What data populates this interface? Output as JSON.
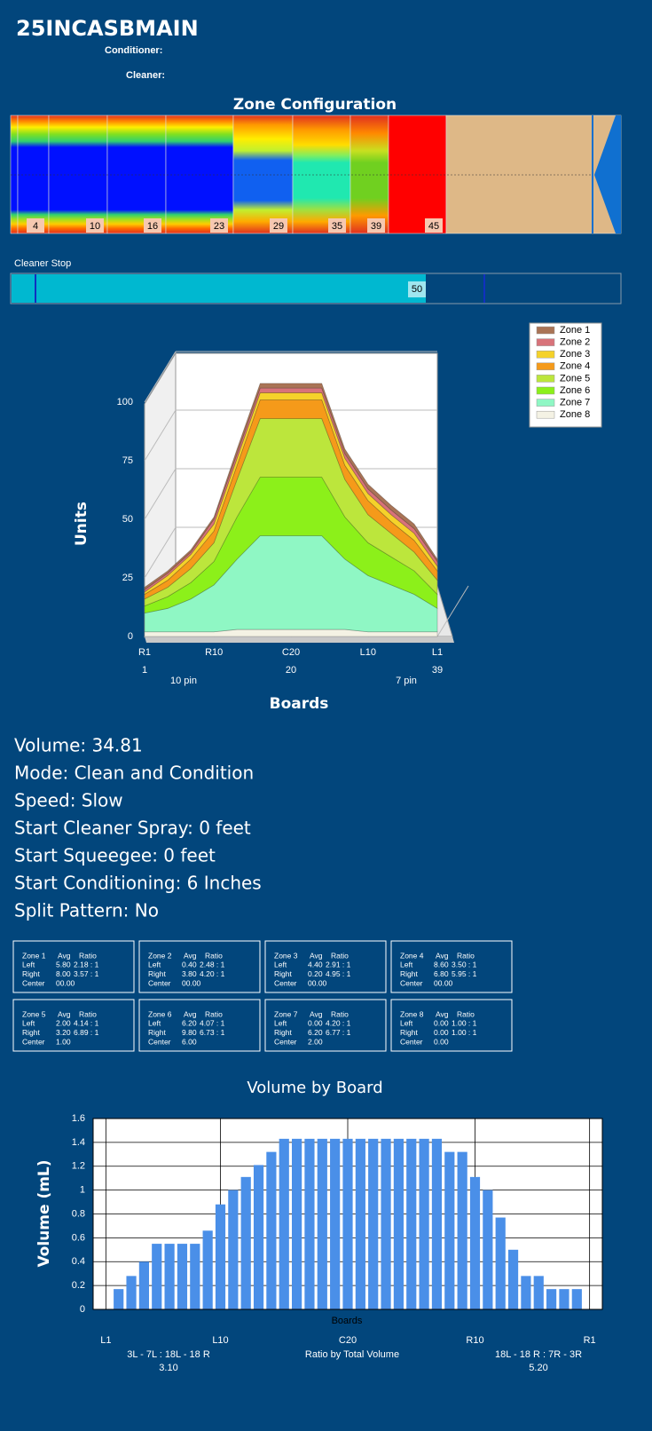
{
  "header": {
    "title": "25INCASBMAIN",
    "conditioner": "Conditioner:",
    "cleaner": "Cleaner:"
  },
  "zone_configuration": {
    "title": "Zone Configuration",
    "labels": [
      4,
      10,
      16,
      23,
      29,
      35,
      39,
      45
    ]
  },
  "cleaner_stop": {
    "label": "Cleaner Stop",
    "value": 50
  },
  "chart_data": [
    {
      "type": "area3d",
      "y_label": "Units",
      "x_label": "Boards",
      "x": [
        1,
        4,
        7,
        10,
        13,
        16,
        20,
        24,
        27,
        30,
        33,
        36,
        39
      ],
      "xlim": [
        1,
        39
      ],
      "xticks": [
        {
          "value": 1,
          "label": "R1"
        },
        {
          "value": 10,
          "label": "R10"
        },
        {
          "value": 20,
          "label": "C20"
        },
        {
          "value": 30,
          "label": "L10"
        },
        {
          "value": 39,
          "label": "L1"
        }
      ],
      "board_ticks": [
        1,
        20,
        39
      ],
      "annotations": [
        "10 pin",
        "7 pin"
      ],
      "ylim": [
        0,
        100
      ],
      "yticks": [
        0,
        25,
        50,
        75,
        100
      ],
      "series": [
        {
          "name": "Zone 1",
          "color": "#a97456",
          "values": [
            1,
            1,
            1,
            1,
            2,
            2,
            2,
            2,
            2,
            2,
            2,
            2,
            1
          ]
        },
        {
          "name": "Zone 2",
          "color": "#d8737a",
          "values": [
            1,
            1,
            1,
            2,
            2,
            2,
            2,
            2,
            2,
            2,
            2,
            2,
            2
          ]
        },
        {
          "name": "Zone 3",
          "color": "#f5d22a",
          "values": [
            1,
            2,
            2,
            3,
            3,
            3,
            3,
            3,
            3,
            3,
            3,
            3,
            2
          ]
        },
        {
          "name": "Zone 4",
          "color": "#f59a1a",
          "values": [
            2,
            3,
            4,
            5,
            6,
            8,
            8,
            8,
            6,
            6,
            5,
            5,
            4
          ]
        },
        {
          "name": "Zone 5",
          "color": "#bce63c",
          "values": [
            3,
            4,
            6,
            8,
            16,
            25,
            25,
            25,
            16,
            12,
            10,
            8,
            6
          ]
        },
        {
          "name": "Zone 6",
          "color": "#8cf01a",
          "values": [
            3,
            5,
            7,
            10,
            18,
            25,
            25,
            25,
            18,
            14,
            12,
            10,
            6
          ]
        },
        {
          "name": "Zone 7",
          "color": "#8ff7c4",
          "values": [
            8,
            10,
            14,
            20,
            30,
            40,
            40,
            40,
            30,
            24,
            20,
            16,
            10
          ]
        },
        {
          "name": "Zone 8",
          "color": "#f4f2e4",
          "values": [
            2,
            2,
            2,
            2,
            3,
            3,
            3,
            3,
            3,
            2,
            2,
            2,
            2
          ]
        }
      ]
    },
    {
      "type": "bar",
      "title": "Volume by Board",
      "y_label": "Volume (mL)",
      "x_label": "Boards",
      "color": "#4a8fe8",
      "x": [
        1,
        2,
        3,
        4,
        5,
        6,
        7,
        8,
        9,
        10,
        11,
        12,
        13,
        14,
        15,
        16,
        17,
        18,
        19,
        20,
        21,
        22,
        23,
        24,
        25,
        26,
        27,
        28,
        29,
        30,
        31,
        32,
        33,
        34,
        35,
        36,
        37,
        38,
        39
      ],
      "values": [
        0,
        0.17,
        0.28,
        0.4,
        0.55,
        0.55,
        0.55,
        0.55,
        0.66,
        0.88,
        1,
        1.11,
        1.21,
        1.32,
        1.43,
        1.43,
        1.43,
        1.43,
        1.43,
        1.43,
        1.43,
        1.43,
        1.43,
        1.43,
        1.43,
        1.43,
        1.43,
        1.32,
        1.32,
        1.11,
        1,
        0.77,
        0.5,
        0.28,
        0.28,
        0.17,
        0.17,
        0.17,
        0
      ],
      "xlim": [
        0,
        40
      ],
      "xticks": [
        {
          "value": 1,
          "label": "L1"
        },
        {
          "value": 10,
          "label": "L10"
        },
        {
          "value": 20,
          "label": "C20"
        },
        {
          "value": 30,
          "label": "R10"
        },
        {
          "value": 39,
          "label": "R1"
        }
      ],
      "ylim": [
        0,
        1.6
      ],
      "yticks": [
        0,
        0.2,
        0.4,
        0.6,
        0.8,
        1,
        1.2,
        1.4,
        1.6
      ],
      "footer": {
        "left": "3L - 7L : 18L - 18 R",
        "left_value": "3.10",
        "center": "Ratio by Total Volume",
        "right": "18L - 18 R : 7R - 3R",
        "right_value": "5.20"
      }
    }
  ],
  "settings": [
    "Volume: 34.81",
    "Mode: Clean and Condition",
    "Speed: Slow",
    "Start Cleaner Spray: 0 feet",
    "Start Squeegee: 0 feet",
    "Start Conditioning: 6 Inches",
    "Split Pattern: No"
  ],
  "zone_tables": [
    {
      "zone": "Zone 1",
      "headers": [
        "Avg",
        "Ratio"
      ],
      "rows": [
        [
          "Left",
          "5.80",
          "2.18 : 1"
        ],
        [
          "Right",
          "8.00",
          "3.57 : 1"
        ],
        [
          "Center",
          "00.00"
        ]
      ]
    },
    {
      "zone": "Zone 2",
      "headers": [
        "Avg",
        "Ratio"
      ],
      "rows": [
        [
          "Left",
          "0.40",
          "2.48 : 1"
        ],
        [
          "Right",
          "3.80",
          "4.20 : 1"
        ],
        [
          "Center",
          "00.00"
        ]
      ]
    },
    {
      "zone": "Zone 3",
      "headers": [
        "Avg",
        "Ratio"
      ],
      "rows": [
        [
          "Left",
          "4.40",
          "2.91 : 1"
        ],
        [
          "Right",
          "0.20",
          "4.95 : 1"
        ],
        [
          "Center",
          "00.00"
        ]
      ]
    },
    {
      "zone": "Zone 4",
      "headers": [
        "Avg",
        "Ratio"
      ],
      "rows": [
        [
          "Left",
          "8.60",
          "3.50 : 1"
        ],
        [
          "Right",
          "6.80",
          "5.95 : 1"
        ],
        [
          "Center",
          "00.00"
        ]
      ]
    },
    {
      "zone": "Zone 5",
      "headers": [
        "Avg",
        "Ratio"
      ],
      "rows": [
        [
          "Left",
          "2.00",
          "4.14 : 1"
        ],
        [
          "Right",
          "3.20",
          "6.89 : 1"
        ],
        [
          "Center",
          "1.00"
        ]
      ]
    },
    {
      "zone": "Zone 6",
      "headers": [
        "Avg",
        "Ratio"
      ],
      "rows": [
        [
          "Left",
          "6.20",
          "4.07 : 1"
        ],
        [
          "Right",
          "9.80",
          "6.73 : 1"
        ],
        [
          "Center",
          "6.00"
        ]
      ]
    },
    {
      "zone": "Zone 7",
      "headers": [
        "Avg",
        "Ratio"
      ],
      "rows": [
        [
          "Left",
          "0.00",
          "4.20 : 1"
        ],
        [
          "Right",
          "6.20",
          "6.77 : 1"
        ],
        [
          "Center",
          "2.00"
        ]
      ]
    },
    {
      "zone": "Zone 8",
      "headers": [
        "Avg",
        "Ratio"
      ],
      "rows": [
        [
          "Left",
          "0.00",
          "1.00 : 1"
        ],
        [
          "Right",
          "0.00",
          "1.00 : 1"
        ],
        [
          "Center",
          "0.00"
        ]
      ]
    }
  ]
}
